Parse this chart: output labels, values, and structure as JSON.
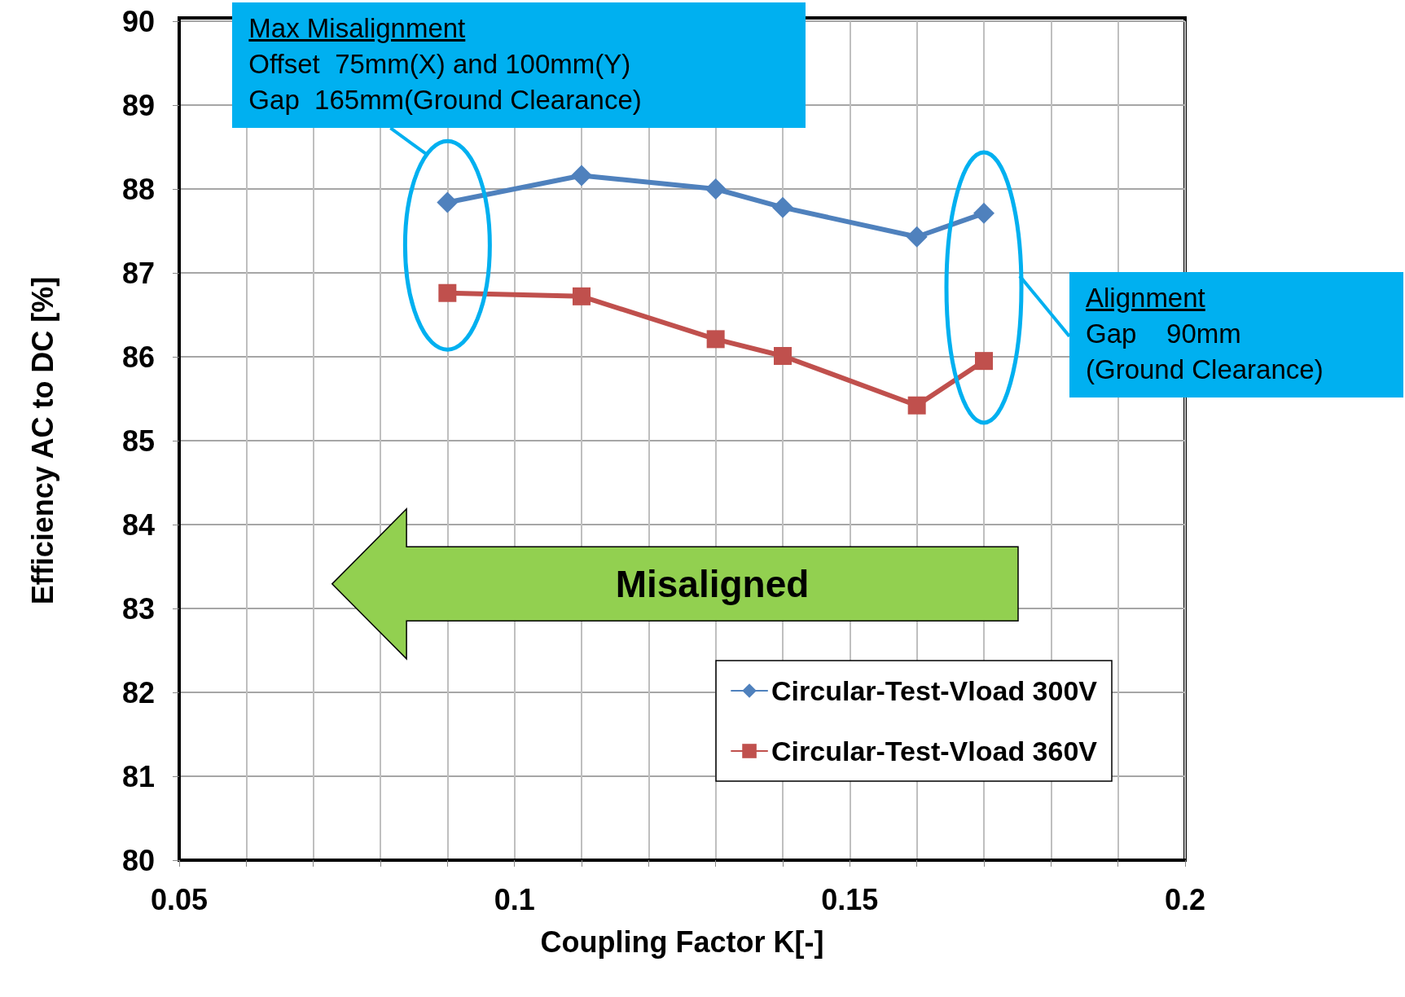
{
  "chart_data": {
    "type": "line",
    "xlabel": "Coupling Factor K[-]",
    "ylabel": "Efficiency AC to DC [%]",
    "x": [
      0.09,
      0.11,
      0.13,
      0.14,
      0.16,
      0.17
    ],
    "series": [
      {
        "name": "Circular-Test-Vload 300V",
        "color": "#4f81bd",
        "marker": "diamond",
        "values": [
          87.84,
          88.16,
          88.0,
          87.78,
          87.43,
          87.71
        ]
      },
      {
        "name": "Circular-Test-Vload 360V",
        "color": "#c0504d",
        "marker": "square",
        "values": [
          86.76,
          86.72,
          86.21,
          86.01,
          85.42,
          85.95
        ]
      }
    ],
    "xlim": [
      0.05,
      0.2
    ],
    "xticks": [
      0.05,
      {
        "value": 0.06,
        "label": null
      },
      {
        "value": 0.07,
        "label": null
      },
      {
        "value": 0.08,
        "label": null
      },
      {
        "value": 0.09,
        "label": null
      },
      0.1,
      {
        "value": 0.11,
        "label": null
      },
      {
        "value": 0.12,
        "label": null
      },
      {
        "value": 0.13,
        "label": null
      },
      {
        "value": 0.14,
        "label": null
      },
      0.15,
      {
        "value": 0.16,
        "label": null
      },
      {
        "value": 0.17,
        "label": null
      },
      {
        "value": 0.18,
        "label": null
      },
      {
        "value": 0.19,
        "label": null
      },
      0.2
    ],
    "ylim": [
      80,
      90
    ],
    "yticks": [
      80,
      81,
      82,
      83,
      84,
      85,
      86,
      87,
      88,
      89,
      90
    ],
    "grid": true,
    "legend": "bottom right",
    "line_style": "solid",
    "annotations": [
      "Max Misalignment\nOffset  75mm(X) and 100mm(Y)\nGap  165mm(Ground Clearance)",
      "Alignment\nGap    90mm\n(Ground Clearance)",
      "Misaligned"
    ]
  }
}
